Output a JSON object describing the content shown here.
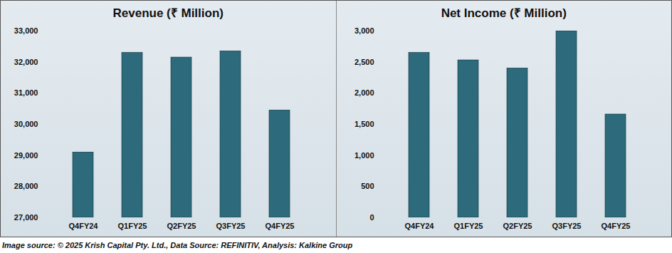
{
  "chart_data": [
    {
      "type": "bar",
      "title": "Revenue (₹ Million)",
      "categories": [
        "Q4FY24",
        "Q1FY25",
        "Q2FY25",
        "Q3FY25",
        "Q4FY25"
      ],
      "values": [
        29100,
        32300,
        32150,
        32350,
        30450
      ],
      "color": "#2c6a7c",
      "ylim": [
        27000,
        33000
      ],
      "yticks": [
        {
          "value": 27000,
          "label": "27,000"
        },
        {
          "value": 28000,
          "label": "28,000"
        },
        {
          "value": 29000,
          "label": "29,000"
        },
        {
          "value": 30000,
          "label": "30,000"
        },
        {
          "value": 31000,
          "label": "31,000"
        },
        {
          "value": 32000,
          "label": "32,000"
        },
        {
          "value": 33000,
          "label": "33,000"
        }
      ],
      "grid": false
    },
    {
      "type": "bar",
      "title": "Net Income (₹ Million)",
      "categories": [
        "Q4FY24",
        "Q1FY25",
        "Q2FY25",
        "Q3FY25",
        "Q4FY25"
      ],
      "values": [
        2650,
        2530,
        2400,
        3000,
        1660
      ],
      "color": "#2c6a7c",
      "ylim": [
        0,
        3000
      ],
      "yticks": [
        0,
        500,
        {
          "value": 1000,
          "label": "1,000"
        },
        {
          "value": 1500,
          "label": "1,500"
        },
        {
          "value": 2000,
          "label": "2,000"
        },
        {
          "value": 2500,
          "label": "2,500"
        },
        {
          "value": 3000,
          "label": "3,000"
        }
      ],
      "grid": false
    }
  ],
  "caption": "Image source: © 2025 Krish Capital Pty. Ltd., Data Source: REFINITIV, Analysis: Kalkine Group"
}
